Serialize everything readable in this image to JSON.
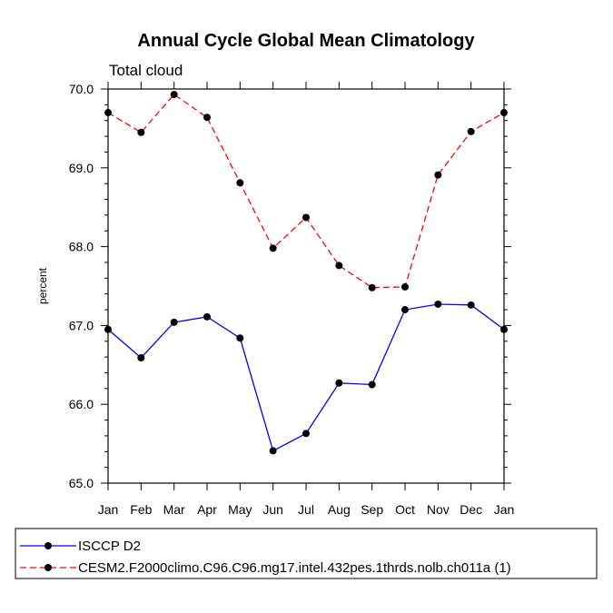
{
  "chart_data": {
    "type": "line",
    "title": "Annual Cycle Global Mean Climatology",
    "subtitle": "Total cloud",
    "ylabel": "percent",
    "xlabel": "",
    "categories": [
      "Jan",
      "Feb",
      "Mar",
      "Apr",
      "May",
      "Jun",
      "Jul",
      "Aug",
      "Sep",
      "Oct",
      "Nov",
      "Dec",
      "Jan"
    ],
    "ylim": [
      65.0,
      70.0
    ],
    "yticks": [
      "65.0",
      "66.0",
      "67.0",
      "68.0",
      "69.0",
      "70.0"
    ],
    "grid": false,
    "legend_position": "bottom",
    "series": [
      {
        "name": "ISCCP D2",
        "color": "#0000ff",
        "line_style": "solid",
        "marker": "filled-circle",
        "values": [
          66.95,
          66.59,
          67.04,
          67.11,
          66.84,
          65.41,
          65.63,
          66.27,
          66.25,
          67.2,
          67.27,
          67.26,
          66.95
        ]
      },
      {
        "name": "CESM2.F2000climo.C96.C96.mg17.intel.432pes.1thrds.nolb.ch011a (1)",
        "color": "#ff0000",
        "line_style": "dashed",
        "marker": "filled-circle",
        "values": [
          69.7,
          69.45,
          69.93,
          69.64,
          68.81,
          67.98,
          68.37,
          67.76,
          67.48,
          67.49,
          68.91,
          69.46,
          69.7
        ]
      }
    ]
  }
}
